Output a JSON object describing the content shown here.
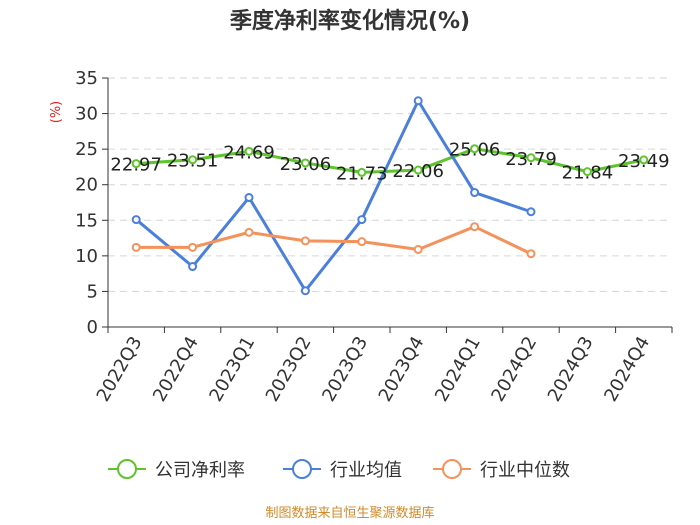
{
  "chart_data": {
    "type": "line",
    "title": "季度净利率变化情况(%)",
    "ylabel": "(%)",
    "xlabel": "",
    "ylim": [
      0,
      35
    ],
    "yticks": [
      0,
      5,
      10,
      15,
      20,
      25,
      30,
      35
    ],
    "categories": [
      "2022Q3",
      "2022Q4",
      "2023Q1",
      "2023Q2",
      "2023Q3",
      "2023Q4",
      "2024Q1",
      "2024Q2",
      "2024Q3",
      "2024Q4"
    ],
    "grid": true,
    "legend_position": "bottom",
    "series": [
      {
        "name": "公司净利率",
        "color": "#5cc42c",
        "values": [
          22.97,
          23.51,
          24.69,
          23.06,
          21.73,
          22.06,
          25.06,
          23.79,
          21.84,
          23.49
        ],
        "labels": [
          "22.97",
          "23.51",
          "24.69",
          "23.06",
          "21.73",
          "22.06",
          "25.06",
          "23.79",
          "21.84",
          "23.49"
        ]
      },
      {
        "name": "行业均值",
        "color": "#4a7fdc",
        "values": [
          15.1,
          8.5,
          18.2,
          5.1,
          15.1,
          31.8,
          18.9,
          16.2,
          null,
          null
        ]
      },
      {
        "name": "行业中位数",
        "color": "#f5915a",
        "values": [
          11.2,
          11.2,
          13.3,
          12.1,
          12.0,
          10.9,
          14.1,
          10.3,
          null,
          null
        ]
      }
    ],
    "source": "制图数据来自恒生聚源数据库"
  }
}
